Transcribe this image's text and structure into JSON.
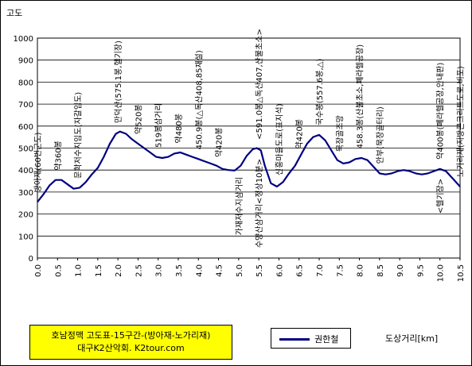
{
  "chart_data": {
    "type": "line",
    "ylabel": "고도",
    "xlabel": "도상거리[km]",
    "ylim": [
      0,
      1000
    ],
    "yticks": [
      0,
      100,
      200,
      300,
      400,
      500,
      600,
      700,
      800,
      900,
      1000
    ],
    "xlim": [
      0,
      10.5
    ],
    "xticks": [
      "0.0",
      "0.5",
      "1.0",
      "1.5",
      "2.0",
      "2.5",
      "3.0",
      "3.5",
      "4.0",
      "4.5",
      "5.0",
      "5.5",
      "6.0",
      "6.5",
      "7.0",
      "7.5",
      "8.0",
      "8.5",
      "9.0",
      "9.5",
      "10.0",
      "10.5"
    ],
    "grid": true,
    "legend_position": "bottom",
    "series": [
      {
        "name": "권한철",
        "color": "#000080",
        "x": [
          0,
          0.15,
          0.3,
          0.45,
          0.6,
          0.75,
          0.9,
          1.05,
          1.2,
          1.35,
          1.5,
          1.65,
          1.8,
          1.95,
          2.05,
          2.2,
          2.35,
          2.5,
          2.65,
          2.8,
          2.95,
          3.1,
          3.25,
          3.4,
          3.55,
          3.7,
          3.85,
          4.0,
          4.15,
          4.3,
          4.45,
          4.6,
          4.75,
          4.9,
          5.05,
          5.2,
          5.35,
          5.45,
          5.55,
          5.65,
          5.8,
          5.95,
          6.1,
          6.25,
          6.4,
          6.55,
          6.7,
          6.85,
          7.0,
          7.15,
          7.3,
          7.45,
          7.6,
          7.75,
          7.9,
          8.05,
          8.2,
          8.35,
          8.5,
          8.65,
          8.8,
          8.95,
          9.1,
          9.25,
          9.4,
          9.55,
          9.7,
          9.85,
          10.0,
          10.15,
          10.3,
          10.5
        ],
        "values": [
          255,
          290,
          330,
          355,
          355,
          335,
          315,
          320,
          345,
          380,
          410,
          460,
          520,
          565,
          575,
          565,
          540,
          520,
          500,
          480,
          460,
          455,
          460,
          475,
          480,
          470,
          460,
          450,
          440,
          430,
          420,
          405,
          400,
          398,
          420,
          465,
          495,
          500,
          490,
          420,
          340,
          325,
          345,
          385,
          420,
          470,
          520,
          550,
          560,
          535,
          490,
          445,
          430,
          435,
          450,
          455,
          445,
          415,
          385,
          380,
          385,
          395,
          400,
          395,
          385,
          380,
          385,
          395,
          405,
          395,
          365,
          325
        ]
      }
    ],
    "annotations": [
      {
        "x": 0.0,
        "text": "방아재(60번군도)"
      },
      {
        "x": 0.5,
        "text": "약360봉"
      },
      {
        "x": 1.0,
        "text": "문학저수지임도(자갈임도)"
      },
      {
        "x": 2.0,
        "text": "만덕산(575.1봉,헬기장)"
      },
      {
        "x": 2.5,
        "text": "약520봉"
      },
      {
        "x": 3.0,
        "text": "519봉삼거리"
      },
      {
        "x": 3.5,
        "text": "약480봉"
      },
      {
        "x": 4.0,
        "text": "450.9봉(△독산408,85재설)"
      },
      {
        "x": 4.5,
        "text": "약420봉"
      },
      {
        "x": 5.0,
        "text": "가재저수지삼거리"
      },
      {
        "x": 5.5,
        "text": "<591.0봉△독산407,산불초소>"
      },
      {
        "x": 5.5,
        "text": "수양산삼거리<정상10분>"
      },
      {
        "x": 6.0,
        "text": "신흥마을도로(표지석)"
      },
      {
        "x": 6.5,
        "text": "약420봉"
      },
      {
        "x": 7.0,
        "text": "국수봉(557.6봉,△)"
      },
      {
        "x": 7.5,
        "text": "묵장골조망"
      },
      {
        "x": 8.0,
        "text": "458.3봉(산불초소,폐라헬공장)"
      },
      {
        "x": 8.5,
        "text": "안부(묵장골터리)"
      },
      {
        "x": 10.0,
        "text": "약400봉(폐라헬공장,안내판)"
      },
      {
        "x": 10.0,
        "text": "<헬기장>"
      },
      {
        "x": 10.5,
        "text": "노가리재(지방콘크리트도로,비포)"
      }
    ],
    "title_lines": [
      "호남정맥 고도표-15구간-(방아재-노가리재)",
      "대구K2산악회. K2tour.com"
    ]
  }
}
